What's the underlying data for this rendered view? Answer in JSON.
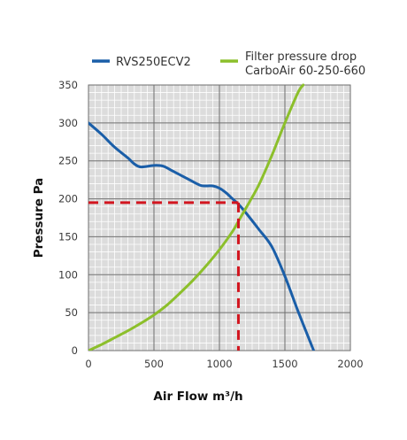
{
  "chart_data": {
    "type": "line",
    "title": "",
    "xlabel": "Air Flow m³/h",
    "ylabel": "Pressure Pa",
    "xlim": [
      0,
      2000
    ],
    "ylim": [
      0,
      350
    ],
    "x_ticks": [
      "0",
      "500",
      "1000",
      "1500",
      "2000"
    ],
    "y_ticks": [
      "0",
      "50",
      "100",
      "150",
      "200",
      "250",
      "300",
      "350"
    ],
    "grid": true,
    "minor_grid": true,
    "background": "#dcdcdc",
    "legend_position": "top",
    "series": [
      {
        "name": "RVS250ECV2",
        "color": "#1a5ea8",
        "x": [
          0,
          100,
          200,
          300,
          350,
          400,
          500,
          570,
          650,
          750,
          850,
          900,
          950,
          1000,
          1050,
          1100,
          1150,
          1200,
          1300,
          1400,
          1500,
          1600,
          1720
        ],
        "y": [
          300,
          285,
          268,
          254,
          246,
          242,
          244,
          243,
          236,
          227,
          218,
          217,
          217,
          214,
          208,
          200,
          192,
          182,
          160,
          137,
          98,
          52,
          0
        ]
      },
      {
        "name": [
          "Filter pressure drop",
          "CarboAir 60-250-660"
        ],
        "color": "#8cbf2b",
        "x": [
          0,
          100,
          200,
          300,
          400,
          500,
          600,
          700,
          800,
          900,
          1000,
          1100,
          1150,
          1200,
          1300,
          1400,
          1500,
          1600,
          1640
        ],
        "y": [
          0,
          8,
          17,
          26,
          36,
          47,
          60,
          76,
          93,
          112,
          133,
          157,
          172,
          187,
          218,
          257,
          300,
          340,
          350
        ]
      }
    ],
    "annotations": [
      {
        "type": "operating-point-guides",
        "color": "#d2151f",
        "style": "dashed",
        "x": 1145,
        "y": 195
      }
    ]
  }
}
